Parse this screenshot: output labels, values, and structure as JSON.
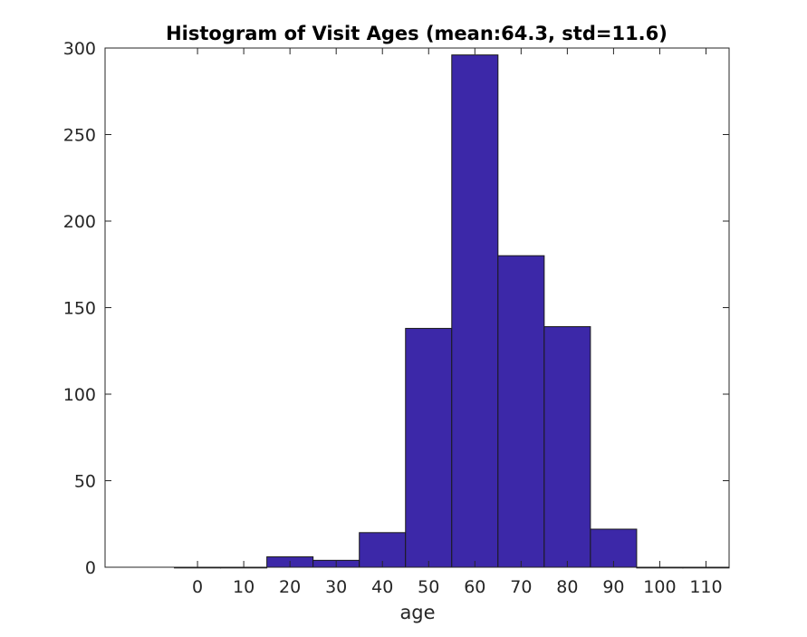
{
  "chart_data": {
    "type": "bar",
    "title": "Histogram of Visit Ages (mean:64.3, std=11.6)",
    "xlabel": "age",
    "ylabel": "",
    "bin_width": 10,
    "bin_centers": [
      0,
      10,
      20,
      30,
      40,
      50,
      60,
      70,
      80,
      90,
      100,
      110
    ],
    "values": [
      0,
      0,
      6,
      4,
      20,
      138,
      296,
      180,
      139,
      22,
      0,
      0
    ],
    "xlim": [
      -20,
      115
    ],
    "ylim": [
      0,
      300
    ],
    "xticks": [
      0,
      10,
      20,
      30,
      40,
      50,
      60,
      70,
      80,
      90,
      100,
      110
    ],
    "yticks": [
      0,
      50,
      100,
      150,
      200,
      250,
      300
    ],
    "bar_color": "#3c28a8",
    "grid": false,
    "legend": "none"
  }
}
